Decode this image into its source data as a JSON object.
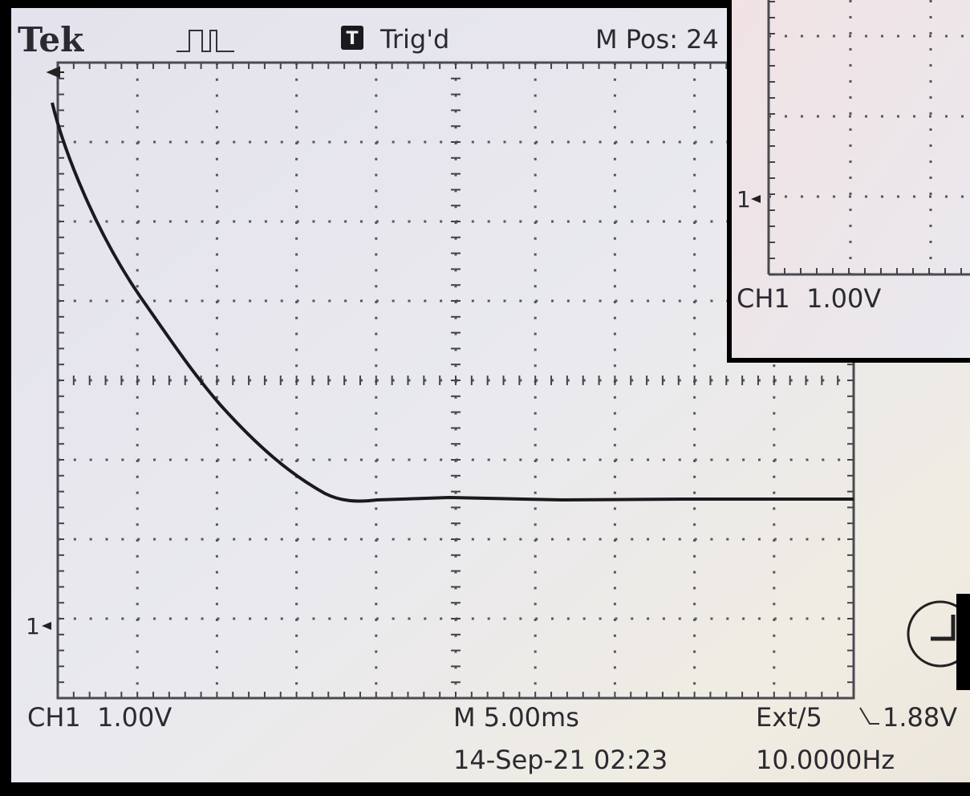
{
  "header": {
    "brand": "Tek",
    "trigger_icon": "T",
    "trigger_status": "Trig'd",
    "position": "M Pos: 24"
  },
  "marker": "1",
  "footer": {
    "channel": "CH1  1.00V",
    "timebase": "M 5.00ms",
    "trigger_source": "Ext/5",
    "trigger_level": "1.88V",
    "date": "14-Sep-21 02:23",
    "frequency": "10.0000Hz"
  },
  "inset": {
    "marker": "1",
    "channel": "CH1  1.00V"
  }
}
